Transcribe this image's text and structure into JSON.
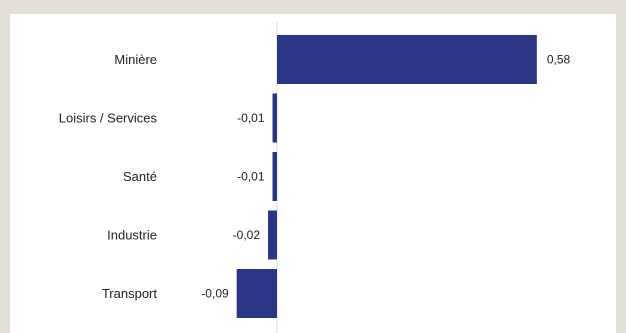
{
  "chart_data": {
    "type": "bar",
    "orientation": "horizontal",
    "categories": [
      "Minière",
      "Loisirs / Services",
      "Santé",
      "Industrie",
      "Transport"
    ],
    "values": [
      0.58,
      -0.01,
      -0.01,
      -0.02,
      -0.09
    ],
    "value_labels": [
      "0,58",
      "-0,01",
      "-0,01",
      "-0,02",
      "-0,09"
    ],
    "xlim": [
      -0.1,
      0.63
    ],
    "bar_color": "#2b3585",
    "grid": false,
    "legend": "none",
    "title": "",
    "xlabel": "",
    "ylabel": ""
  },
  "colors": {
    "background": "#e3e0da",
    "panel": "#ffffff",
    "bar": "#2b3585",
    "zero_line": "#dddddd",
    "text": "#222222"
  }
}
